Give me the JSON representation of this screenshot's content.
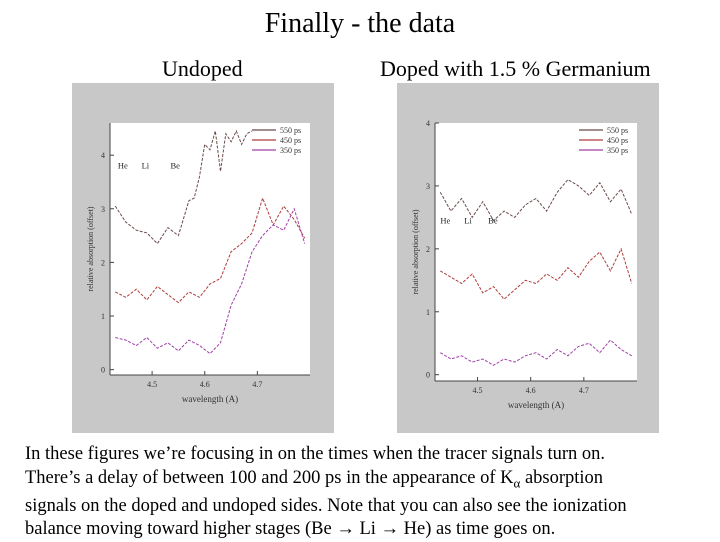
{
  "slide": {
    "title": "Finally - the data",
    "label_left": "Undoped",
    "label_right": "Doped with 1.5 % Germanium",
    "caption": [
      {
        "text": "In these figures we’re focusing in on the times when the tracer signals turn on."
      },
      {
        "text": "There’s a delay of between 100 and 200 ps in the appearance of K",
        "sub": "α",
        "after": " absorption"
      },
      {
        "text": "signals on the doped and undoped sides.  Note that you can also see the ionization"
      },
      {
        "text": "balance moving toward higher stages (Be → Li → He) as time goes on."
      }
    ]
  },
  "chart_data": [
    {
      "type": "line",
      "panel": "Undoped",
      "xlabel": "wavelength (A)",
      "ylabel": "relative absorption (offset)",
      "xlim": [
        4.42,
        4.8
      ],
      "ylim": [
        -0.1,
        4.6
      ],
      "xticks": [
        4.5,
        4.6,
        4.7
      ],
      "xtick_labels": [
        "4.5",
        "4.6",
        "4.7"
      ],
      "yticks": [
        0,
        1,
        2,
        3,
        4
      ],
      "ion_labels": [
        {
          "text": "He",
          "x": 4.435,
          "y": 3.75
        },
        {
          "text": "Li",
          "x": 4.48,
          "y": 3.75
        },
        {
          "text": "Be",
          "x": 4.535,
          "y": 3.75
        }
      ],
      "legend": [
        {
          "name": "550 ps",
          "color": "#6b4a4a"
        },
        {
          "name": "450 ps",
          "color": "#b03c3c"
        },
        {
          "name": "350 ps",
          "color": "#a040a8"
        }
      ],
      "series": [
        {
          "name": "550 ps",
          "color": "#6b4a4a",
          "x": [
            4.43,
            4.45,
            4.47,
            4.49,
            4.51,
            4.53,
            4.55,
            4.57,
            4.58,
            4.59,
            4.6,
            4.61,
            4.62,
            4.63,
            4.64,
            4.65,
            4.66,
            4.67,
            4.68,
            4.69
          ],
          "y": [
            3.05,
            2.75,
            2.6,
            2.55,
            2.35,
            2.65,
            2.5,
            3.15,
            3.2,
            3.6,
            4.2,
            4.1,
            4.45,
            3.7,
            4.4,
            4.25,
            4.45,
            4.2,
            4.4,
            4.45
          ]
        },
        {
          "name": "450 ps",
          "color": "#b03c3c",
          "x": [
            4.43,
            4.45,
            4.47,
            4.49,
            4.51,
            4.53,
            4.55,
            4.57,
            4.59,
            4.61,
            4.63,
            4.65,
            4.67,
            4.69,
            4.71,
            4.73,
            4.75,
            4.77,
            4.79
          ],
          "y": [
            1.45,
            1.35,
            1.5,
            1.3,
            1.55,
            1.4,
            1.25,
            1.45,
            1.35,
            1.6,
            1.7,
            2.2,
            2.35,
            2.55,
            3.2,
            2.7,
            3.05,
            2.8,
            2.45
          ]
        },
        {
          "name": "350 ps",
          "color": "#a040a8",
          "x": [
            4.43,
            4.45,
            4.47,
            4.49,
            4.51,
            4.53,
            4.55,
            4.57,
            4.59,
            4.61,
            4.63,
            4.65,
            4.67,
            4.69,
            4.71,
            4.73,
            4.75,
            4.77,
            4.79
          ],
          "y": [
            0.6,
            0.55,
            0.45,
            0.6,
            0.4,
            0.5,
            0.35,
            0.55,
            0.45,
            0.3,
            0.5,
            1.2,
            1.6,
            2.2,
            2.5,
            2.7,
            2.6,
            3.0,
            2.35
          ]
        }
      ]
    },
    {
      "type": "line",
      "panel": "Doped with 1.5 % Germanium",
      "xlabel": "wavelength (A)",
      "ylabel": "relative absorption (offset)",
      "xlim": [
        4.42,
        4.8
      ],
      "ylim": [
        -0.1,
        4.0
      ],
      "xticks": [
        4.5,
        4.6,
        4.7
      ],
      "xtick_labels": [
        "4.5",
        "4.6",
        "4.7"
      ],
      "yticks": [
        0,
        1,
        2,
        3,
        4
      ],
      "ion_labels": [
        {
          "text": "He",
          "x": 4.43,
          "y": 2.4
        },
        {
          "text": "Li",
          "x": 4.475,
          "y": 2.4
        },
        {
          "text": "Be",
          "x": 4.52,
          "y": 2.4
        }
      ],
      "legend": [
        {
          "name": "550 ps",
          "color": "#6b4a4a"
        },
        {
          "name": "450 ps",
          "color": "#b03c3c"
        },
        {
          "name": "350 ps",
          "color": "#a040a8"
        }
      ],
      "series": [
        {
          "name": "550 ps",
          "color": "#6b4a4a",
          "x": [
            4.43,
            4.45,
            4.47,
            4.49,
            4.51,
            4.53,
            4.55,
            4.57,
            4.59,
            4.61,
            4.63,
            4.65,
            4.67,
            4.69,
            4.71,
            4.73,
            4.75,
            4.77,
            4.79
          ],
          "y": [
            2.9,
            2.6,
            2.8,
            2.5,
            2.75,
            2.45,
            2.6,
            2.5,
            2.7,
            2.8,
            2.6,
            2.9,
            3.1,
            3.0,
            2.85,
            3.05,
            2.75,
            2.95,
            2.55
          ]
        },
        {
          "name": "450 ps",
          "color": "#b03c3c",
          "x": [
            4.43,
            4.45,
            4.47,
            4.49,
            4.51,
            4.53,
            4.55,
            4.57,
            4.59,
            4.61,
            4.63,
            4.65,
            4.67,
            4.69,
            4.71,
            4.73,
            4.75,
            4.77,
            4.79
          ],
          "y": [
            1.65,
            1.55,
            1.45,
            1.6,
            1.3,
            1.4,
            1.2,
            1.35,
            1.5,
            1.45,
            1.6,
            1.5,
            1.7,
            1.55,
            1.8,
            1.95,
            1.65,
            2.0,
            1.45
          ]
        },
        {
          "name": "350 ps",
          "color": "#a040a8",
          "x": [
            4.43,
            4.45,
            4.47,
            4.49,
            4.51,
            4.53,
            4.55,
            4.57,
            4.59,
            4.61,
            4.63,
            4.65,
            4.67,
            4.69,
            4.71,
            4.73,
            4.75,
            4.77,
            4.79
          ],
          "y": [
            0.35,
            0.25,
            0.3,
            0.2,
            0.25,
            0.15,
            0.25,
            0.2,
            0.3,
            0.35,
            0.25,
            0.4,
            0.3,
            0.45,
            0.5,
            0.35,
            0.55,
            0.4,
            0.3
          ]
        }
      ]
    }
  ]
}
